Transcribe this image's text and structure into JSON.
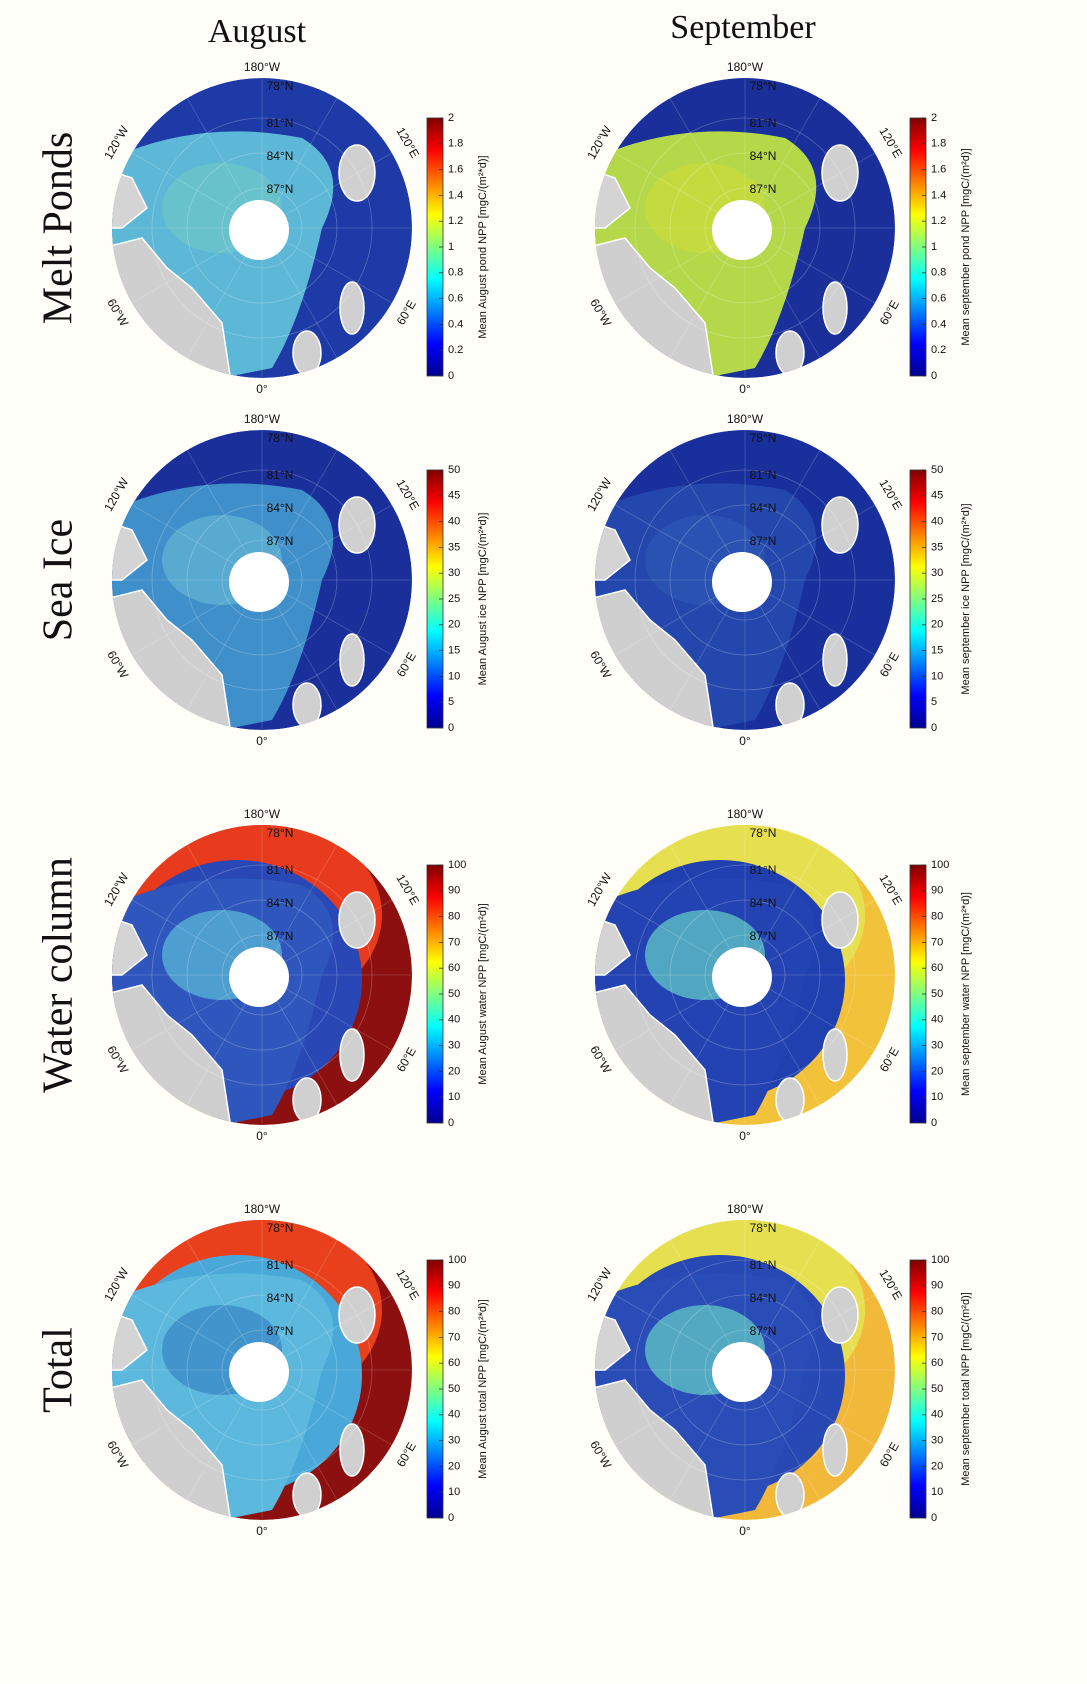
{
  "columns": [
    "August",
    "September"
  ],
  "map_labels": {
    "lat": [
      "78°N",
      "81°N",
      "84°N",
      "87°N"
    ],
    "lon": [
      "180°W",
      "120°W",
      "60°W",
      "0°",
      "60°E",
      "120°E"
    ]
  },
  "rows": [
    {
      "label": "Melt Ponds",
      "panels": [
        {
          "colorbar_label": "Mean August pond NPP [mgC/(m²*d)]",
          "clim": [
            0,
            2
          ],
          "cticks": [
            0,
            0.2,
            0.4,
            0.6,
            0.8,
            1,
            1.2,
            1.4,
            1.6,
            1.8,
            2
          ]
        },
        {
          "colorbar_label": "Mean september pond NPP [mgC/(m²d)]",
          "clim": [
            0,
            2
          ],
          "cticks": [
            0,
            0.2,
            0.4,
            0.6,
            0.8,
            1,
            1.2,
            1.4,
            1.6,
            1.8,
            2
          ]
        }
      ]
    },
    {
      "label": "Sea Ice",
      "panels": [
        {
          "colorbar_label": "Mean August ice NPP [mgC/(m²*d)]",
          "clim": [
            0,
            50
          ],
          "cticks": [
            0,
            5,
            10,
            15,
            20,
            25,
            30,
            35,
            40,
            45,
            50
          ]
        },
        {
          "colorbar_label": "Mean september ice NPP [mgC/(m²*d)]",
          "clim": [
            0,
            50
          ],
          "cticks": [
            0,
            5,
            10,
            15,
            20,
            25,
            30,
            35,
            40,
            45,
            50
          ]
        }
      ]
    },
    {
      "label": "Water column",
      "panels": [
        {
          "colorbar_label": "Mean August water NPP [mgC/(m²d)]",
          "clim": [
            0,
            100
          ],
          "cticks": [
            0,
            10,
            20,
            30,
            40,
            50,
            60,
            70,
            80,
            90,
            100
          ]
        },
        {
          "colorbar_label": "Mean september water NPP [mgC/(m²*d)]",
          "clim": [
            0,
            100
          ],
          "cticks": [
            0,
            10,
            20,
            30,
            40,
            50,
            60,
            70,
            80,
            90,
            100
          ]
        }
      ]
    },
    {
      "label": "Total",
      "panels": [
        {
          "colorbar_label": "Mean August total NPP [mgC/(m²*d)]",
          "clim": [
            0,
            100
          ],
          "cticks": [
            0,
            10,
            20,
            30,
            40,
            50,
            60,
            70,
            80,
            90,
            100
          ]
        },
        {
          "colorbar_label": "Mean september total NPP [mgC/(m²d)]",
          "clim": [
            0,
            100
          ],
          "cticks": [
            0,
            10,
            20,
            30,
            40,
            50,
            60,
            70,
            80,
            90,
            100
          ]
        }
      ]
    }
  ]
}
